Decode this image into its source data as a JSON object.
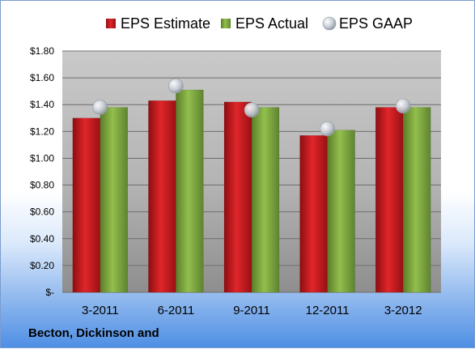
{
  "chart_data": {
    "type": "bar",
    "categories": [
      "3-2011",
      "6-2011",
      "9-2011",
      "12-2011",
      "3-2012"
    ],
    "series": [
      {
        "name": "EPS Estimate",
        "values": [
          1.3,
          1.43,
          1.42,
          1.17,
          1.38
        ],
        "color": "#c0161b",
        "mark": "bar"
      },
      {
        "name": "EPS Actual",
        "values": [
          1.38,
          1.51,
          1.38,
          1.21,
          1.38
        ],
        "color": "#77a03a",
        "mark": "bar"
      },
      {
        "name": "EPS GAAP",
        "values": [
          1.38,
          1.54,
          1.36,
          1.22,
          1.39
        ],
        "color": "#b9c0c9",
        "mark": "marker"
      }
    ],
    "yticks": [
      "$-",
      "$0.20",
      "$0.40",
      "$0.60",
      "$0.80",
      "$1.00",
      "$1.20",
      "$1.40",
      "$1.60",
      "$1.80"
    ],
    "ylim": [
      0,
      1.8
    ],
    "grid": true,
    "legend_position": "top"
  },
  "footer": {
    "company": "Becton, Dickinson and"
  }
}
